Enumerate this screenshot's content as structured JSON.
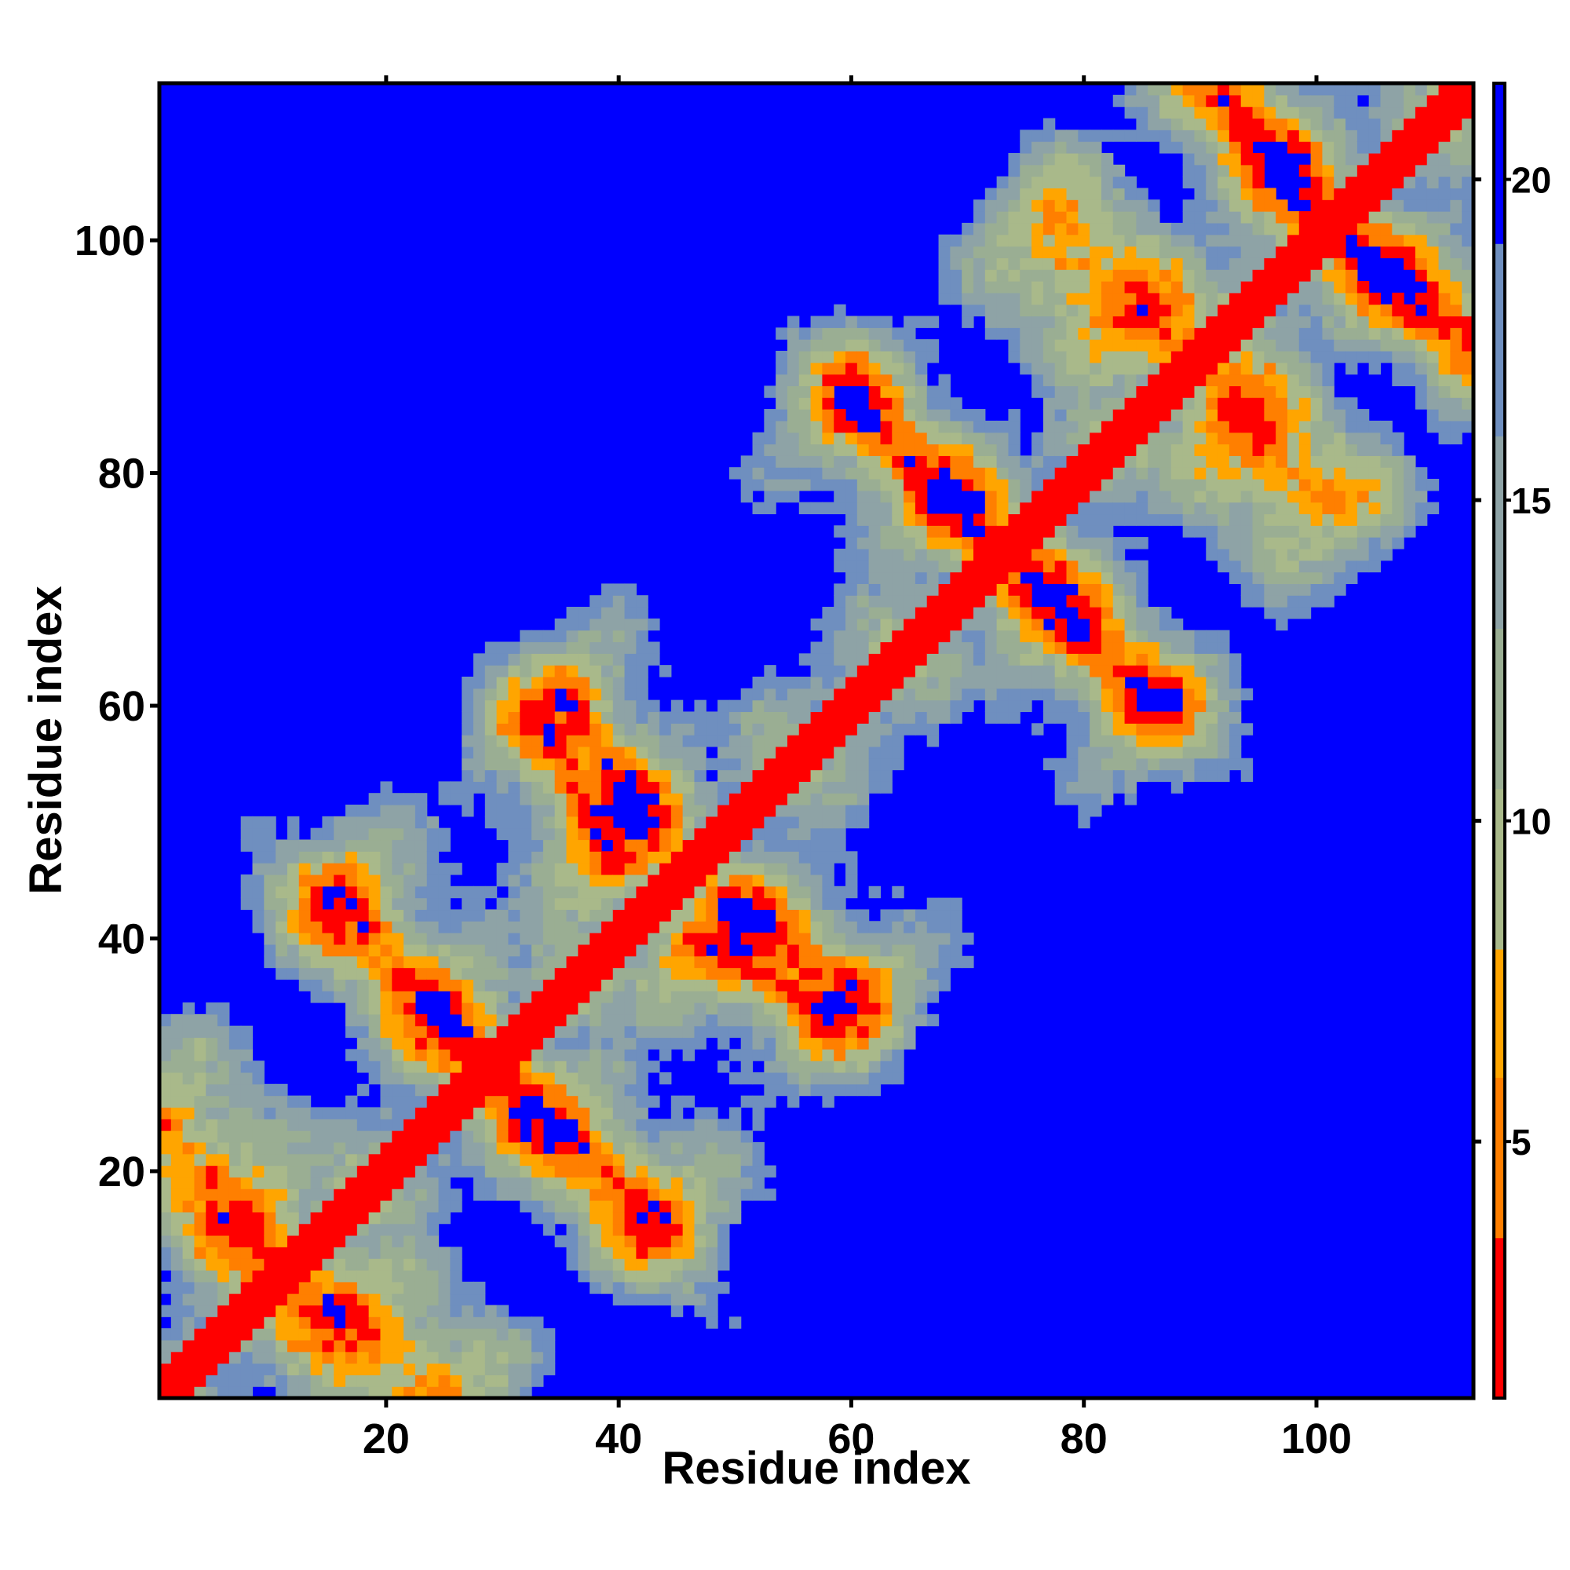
{
  "chart_data": {
    "type": "heatmap",
    "title": "",
    "xlabel": "Residue index",
    "ylabel": "Residue index",
    "xlim": [
      1,
      113
    ],
    "ylim": [
      1,
      113
    ],
    "n_residues": 113,
    "x_ticks": [
      20,
      40,
      60,
      80,
      100
    ],
    "y_ticks": [
      20,
      40,
      60,
      80,
      100
    ],
    "colorbar": {
      "range": [
        1,
        21.5
      ],
      "ticks": [
        5,
        10,
        15,
        20
      ],
      "colors": [
        {
          "min": 1,
          "max": 3.5,
          "color": "#ff0000"
        },
        {
          "min": 3.5,
          "max": 6,
          "color": "#ff7f00"
        },
        {
          "min": 6,
          "max": 8,
          "color": "#ffa500"
        },
        {
          "min": 8,
          "max": 10.5,
          "color": "#a9b98a"
        },
        {
          "min": 10.5,
          "max": 13,
          "color": "#9aae93"
        },
        {
          "min": 13,
          "max": 16,
          "color": "#8ea3a6"
        },
        {
          "min": 16,
          "max": 19,
          "color": "#6f8fbf"
        },
        {
          "min": 19,
          "max": 21.5,
          "color": "#0000ff"
        }
      ]
    },
    "description_values": {
      "diagonal_distance": 1,
      "saturation_distance": 21.5,
      "contact_bands": [
        {
          "x_start": 1,
          "y_start": 24,
          "x_end": 12,
          "y_end": 12
        },
        {
          "x_start": 12,
          "y_start": 11,
          "x_end": 24,
          "y_end": 2
        },
        {
          "x_start": 16,
          "y_start": 44,
          "x_end": 28,
          "y_end": 30
        },
        {
          "x_start": 29,
          "y_start": 29,
          "x_end": 44,
          "y_end": 16
        },
        {
          "x_start": 36,
          "y_start": 60,
          "x_end": 42,
          "y_end": 50
        },
        {
          "x_start": 46,
          "y_start": 40,
          "x_end": 58,
          "y_end": 34
        },
        {
          "x_start": 60,
          "y_start": 85,
          "x_end": 72,
          "y_end": 74
        },
        {
          "x_start": 74,
          "y_start": 72,
          "x_end": 86,
          "y_end": 60
        },
        {
          "x_start": 78,
          "y_start": 100,
          "x_end": 90,
          "y_end": 88
        },
        {
          "x_start": 91,
          "y_start": 87,
          "x_end": 98,
          "y_end": 78
        },
        {
          "x_start": 92,
          "y_start": 112,
          "x_end": 99,
          "y_end": 103
        },
        {
          "x_start": 101,
          "y_start": 101,
          "x_end": 113,
          "y_end": 92
        }
      ]
    }
  },
  "colors": {
    "far": "#0000ff",
    "diagonal": "#ff0000"
  }
}
